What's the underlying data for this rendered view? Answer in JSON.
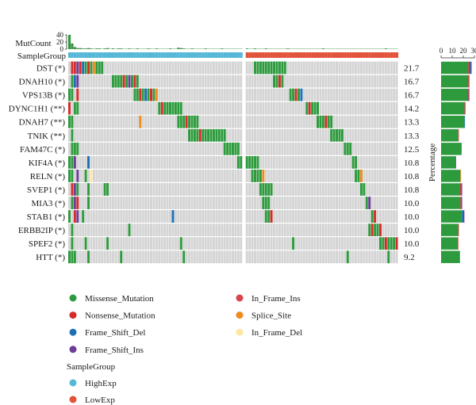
{
  "chart_data": {
    "type": "heatmap",
    "row_axis_label": "MutCount",
    "group_bar_label": "SampleGroup",
    "percentage_axis_label": "Percentage",
    "right_bar_axis_label": "MutCount",
    "mutcount_ticks": [
      "40",
      "20",
      "0"
    ],
    "right_axis_ticks": [
      "0",
      "10",
      "20",
      "30"
    ],
    "right_axis_max": 30,
    "mutcount_max": 40,
    "genes": [
      {
        "name": "DST (*)",
        "percentage": "21.7",
        "count": 27.5
      },
      {
        "name": "DNAH10 (*)",
        "percentage": "16.7",
        "count": 25.5
      },
      {
        "name": "VPS13B (*)",
        "percentage": "16.7",
        "count": 25.5
      },
      {
        "name": "DYNC1H1 (**)",
        "percentage": "14.2",
        "count": 22.0
      },
      {
        "name": "DNAH7 (**)",
        "percentage": "13.3",
        "count": 21.5
      },
      {
        "name": "TNIK (**)",
        "percentage": "13.3",
        "count": 16.0
      },
      {
        "name": "FAM47C (*)",
        "percentage": "12.5",
        "count": 18.5
      },
      {
        "name": "KIF4A (*)",
        "percentage": "10.8",
        "count": 13.5
      },
      {
        "name": "RELN (*)",
        "percentage": "10.8",
        "count": 18.0
      },
      {
        "name": "SVEP1 (*)",
        "percentage": "10.8",
        "count": 19.0
      },
      {
        "name": "MIA3 (*)",
        "percentage": "10.0",
        "count": 19.0
      },
      {
        "name": "STAB1 (*)",
        "percentage": "10.0",
        "count": 21.0
      },
      {
        "name": "ERBB2IP (*)",
        "percentage": "10.0",
        "count": 16.0
      },
      {
        "name": "SPEF2 (*)",
        "percentage": "10.0",
        "count": 15.5
      },
      {
        "name": "HTT (*)",
        "percentage": "9.2",
        "count": 17.0
      }
    ],
    "mutation_legend": [
      {
        "label": "Missense_Mutation",
        "color": "#2e9a3e"
      },
      {
        "label": "Nonsense_Mutation",
        "color": "#d62b2b"
      },
      {
        "label": "Frame_Shift_Del",
        "color": "#1f6fb5"
      },
      {
        "label": "Frame_Shift_Ins",
        "color": "#6d3d98"
      },
      {
        "label": "In_Frame_Ins",
        "color": "#d9444f"
      },
      {
        "label": "Splice_Site",
        "color": "#ef8a1f"
      },
      {
        "label": "In_Frame_Del",
        "color": "#fbe8a0"
      }
    ],
    "group_legend_title": "SampleGroup",
    "group_legend": [
      {
        "label": "HighExp",
        "color": "#56b8d8"
      },
      {
        "label": "LowExp",
        "color": "#e2533a"
      }
    ],
    "colors": {
      "missense": "#2e9a3e",
      "nonsense": "#d62b2b",
      "fs_del": "#1f6fb5",
      "fs_ins": "#6d3d98",
      "if_ins": "#d9444f",
      "splice": "#ef8a1f",
      "if_del": "#fbe8a0",
      "empty": "#d4d4d4",
      "high": "#56b8d8",
      "low": "#e2533a"
    }
  }
}
